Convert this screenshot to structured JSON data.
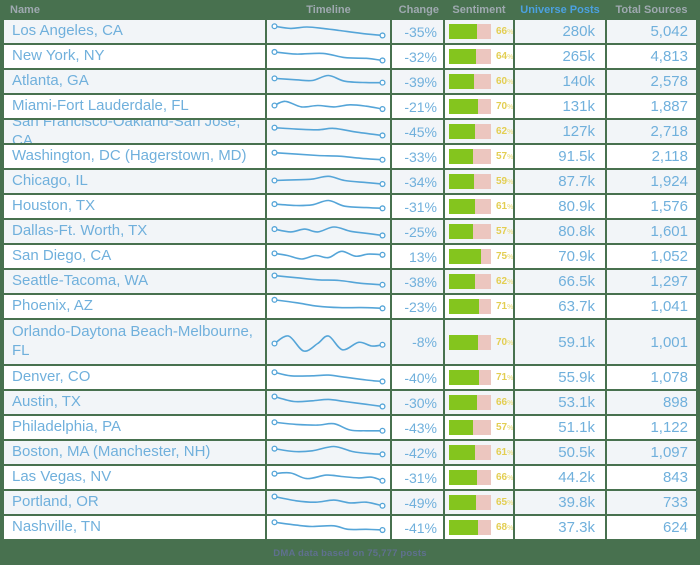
{
  "columns": [
    {
      "label": "Name"
    },
    {
      "label": "Timeline"
    },
    {
      "label": "Change"
    },
    {
      "label": "Sentiment"
    },
    {
      "label": "Universe Posts",
      "active": true
    },
    {
      "label": "Total Sources"
    }
  ],
  "colors": {
    "background_green": "#48714f",
    "row_text_blue": "#70b0dc",
    "active_column_header_blue": "#4ba1e0",
    "header_gray": "#9fa9b0",
    "sentiment_positive_green": "#84c51e",
    "sentiment_negative_pink": "#ecc6bf",
    "sentiment_label_yellow": "#e3ce52",
    "sparkline_blue": "#55a5d8",
    "stripe_row_bg": "#f2f5f8"
  },
  "chart_data": {
    "type": "table",
    "title": "",
    "columns": [
      "Name",
      "Timeline",
      "Change",
      "Sentiment",
      "Universe Posts",
      "Total Sources"
    ],
    "rows_summary": "20 DMA regions sorted descending by Universe Posts"
  },
  "rows": [
    {
      "name": "Los Angeles, CA",
      "change": "-35%",
      "sentiment_pct": 66,
      "universe_posts": "280k",
      "total_sources": "5,042",
      "spark": [
        [
          0,
          6
        ],
        [
          15,
          9
        ],
        [
          30,
          7
        ],
        [
          45,
          9
        ],
        [
          60,
          12
        ],
        [
          80,
          16
        ],
        [
          100,
          19
        ]
      ]
    },
    {
      "name": "New York, NY",
      "change": "-32%",
      "sentiment_pct": 64,
      "universe_posts": "265k",
      "total_sources": "4,813",
      "spark": [
        [
          0,
          7
        ],
        [
          20,
          10
        ],
        [
          45,
          9
        ],
        [
          65,
          15
        ],
        [
          85,
          16
        ],
        [
          100,
          19
        ]
      ]
    },
    {
      "name": "Atlanta, GA",
      "change": "-39%",
      "sentiment_pct": 60,
      "universe_posts": "140k",
      "total_sources": "2,578",
      "spark": [
        [
          0,
          9
        ],
        [
          20,
          11
        ],
        [
          35,
          12
        ],
        [
          50,
          5
        ],
        [
          65,
          13
        ],
        [
          85,
          15
        ],
        [
          100,
          15
        ]
      ]
    },
    {
      "name": "Miami-Fort Lauderdale, FL",
      "change": "-21%",
      "sentiment_pct": 70,
      "universe_posts": "131k",
      "total_sources": "1,887",
      "spark": [
        [
          0,
          12
        ],
        [
          10,
          6
        ],
        [
          25,
          14
        ],
        [
          40,
          12
        ],
        [
          55,
          14
        ],
        [
          70,
          11
        ],
        [
          85,
          13
        ],
        [
          100,
          17
        ]
      ]
    },
    {
      "name": "San Francisco-Oakland-San Jose, CA",
      "change": "-45%",
      "sentiment_pct": 62,
      "universe_posts": "127k",
      "total_sources": "2,718",
      "spark": [
        [
          0,
          8
        ],
        [
          20,
          10
        ],
        [
          40,
          11
        ],
        [
          55,
          9
        ],
        [
          75,
          14
        ],
        [
          100,
          19
        ]
      ]
    },
    {
      "name": "Washington, DC (Hagerstown, MD)",
      "change": "-33%",
      "sentiment_pct": 57,
      "universe_posts": "91.5k",
      "total_sources": "2,118",
      "spark": [
        [
          0,
          8
        ],
        [
          20,
          10
        ],
        [
          40,
          12
        ],
        [
          60,
          13
        ],
        [
          80,
          16
        ],
        [
          100,
          18
        ]
      ]
    },
    {
      "name": "Chicago, IL",
      "change": "-34%",
      "sentiment_pct": 59,
      "universe_posts": "87.7k",
      "total_sources": "1,924",
      "spark": [
        [
          0,
          12
        ],
        [
          20,
          11
        ],
        [
          35,
          10
        ],
        [
          50,
          6
        ],
        [
          65,
          12
        ],
        [
          85,
          15
        ],
        [
          100,
          17
        ]
      ]
    },
    {
      "name": "Houston, TX",
      "change": "-31%",
      "sentiment_pct": 61,
      "universe_posts": "80.9k",
      "total_sources": "1,576",
      "spark": [
        [
          0,
          10
        ],
        [
          20,
          12
        ],
        [
          35,
          11
        ],
        [
          50,
          5
        ],
        [
          65,
          13
        ],
        [
          85,
          15
        ],
        [
          100,
          16
        ]
      ]
    },
    {
      "name": "Dallas-Ft. Worth, TX",
      "change": "-25%",
      "sentiment_pct": 57,
      "universe_posts": "80.8k",
      "total_sources": "1,601",
      "spark": [
        [
          0,
          10
        ],
        [
          15,
          14
        ],
        [
          28,
          10
        ],
        [
          40,
          14
        ],
        [
          55,
          7
        ],
        [
          70,
          13
        ],
        [
          85,
          16
        ],
        [
          100,
          19
        ]
      ]
    },
    {
      "name": "San Diego, CA",
      "change": "13%",
      "sentiment_pct": 75,
      "universe_posts": "70.9k",
      "total_sources": "1,052",
      "spark": [
        [
          0,
          9
        ],
        [
          12,
          12
        ],
        [
          25,
          17
        ],
        [
          38,
          12
        ],
        [
          50,
          15
        ],
        [
          62,
          6
        ],
        [
          75,
          13
        ],
        [
          87,
          10
        ],
        [
          100,
          11
        ]
      ]
    },
    {
      "name": "Seattle-Tacoma, WA",
      "change": "-38%",
      "sentiment_pct": 62,
      "universe_posts": "66.5k",
      "total_sources": "1,297",
      "spark": [
        [
          0,
          5
        ],
        [
          20,
          8
        ],
        [
          40,
          11
        ],
        [
          60,
          12
        ],
        [
          80,
          16
        ],
        [
          100,
          18
        ]
      ]
    },
    {
      "name": "Phoenix, AZ",
      "change": "-23%",
      "sentiment_pct": 71,
      "universe_posts": "63.7k",
      "total_sources": "1,041",
      "spark": [
        [
          0,
          4
        ],
        [
          20,
          8
        ],
        [
          40,
          13
        ],
        [
          60,
          15
        ],
        [
          80,
          15
        ],
        [
          100,
          16
        ]
      ]
    },
    {
      "name": "Orlando-Daytona Beach-Melbourne, FL",
      "change": "-8%",
      "sentiment_pct": 70,
      "universe_posts": "59.1k",
      "total_sources": "1,001",
      "tall": true,
      "spark": [
        [
          0,
          14
        ],
        [
          13,
          8
        ],
        [
          27,
          20
        ],
        [
          40,
          14
        ],
        [
          50,
          8
        ],
        [
          63,
          19
        ],
        [
          78,
          13
        ],
        [
          90,
          16
        ],
        [
          100,
          15
        ]
      ]
    },
    {
      "name": "Denver, CO",
      "change": "-40%",
      "sentiment_pct": 71,
      "universe_posts": "55.9k",
      "total_sources": "1,078",
      "spark": [
        [
          0,
          6
        ],
        [
          15,
          11
        ],
        [
          35,
          11
        ],
        [
          50,
          10
        ],
        [
          65,
          13
        ],
        [
          85,
          17
        ],
        [
          100,
          19
        ]
      ]
    },
    {
      "name": "Austin, TX",
      "change": "-30%",
      "sentiment_pct": 66,
      "universe_posts": "53.1k",
      "total_sources": "898",
      "spark": [
        [
          0,
          5
        ],
        [
          18,
          12
        ],
        [
          35,
          11
        ],
        [
          50,
          9
        ],
        [
          65,
          12
        ],
        [
          85,
          16
        ],
        [
          100,
          19
        ]
      ]
    },
    {
      "name": "Philadelphia, PA",
      "change": "-43%",
      "sentiment_pct": 57,
      "universe_posts": "51.1k",
      "total_sources": "1,122",
      "spark": [
        [
          0,
          6
        ],
        [
          20,
          9
        ],
        [
          40,
          10
        ],
        [
          55,
          8
        ],
        [
          70,
          17
        ],
        [
          85,
          18
        ],
        [
          100,
          18
        ]
      ]
    },
    {
      "name": "Boston, MA (Manchester, NH)",
      "change": "-42%",
      "sentiment_pct": 61,
      "universe_posts": "50.5k",
      "total_sources": "1,097",
      "spark": [
        [
          0,
          8
        ],
        [
          18,
          12
        ],
        [
          35,
          11
        ],
        [
          55,
          5
        ],
        [
          72,
          12
        ],
        [
          88,
          15
        ],
        [
          100,
          16
        ]
      ]
    },
    {
      "name": "Las Vegas, NV",
      "change": "-31%",
      "sentiment_pct": 66,
      "universe_posts": "44.2k",
      "total_sources": "843",
      "spark": [
        [
          0,
          8
        ],
        [
          15,
          7
        ],
        [
          30,
          15
        ],
        [
          48,
          10
        ],
        [
          62,
          12
        ],
        [
          78,
          14
        ],
        [
          90,
          13
        ],
        [
          100,
          18
        ]
      ]
    },
    {
      "name": "Portland, OR",
      "change": "-49%",
      "sentiment_pct": 65,
      "universe_posts": "39.8k",
      "total_sources": "733",
      "spark": [
        [
          0,
          5
        ],
        [
          20,
          11
        ],
        [
          38,
          13
        ],
        [
          55,
          10
        ],
        [
          70,
          14
        ],
        [
          85,
          13
        ],
        [
          100,
          18
        ]
      ]
    },
    {
      "name": "Nashville, TN",
      "change": "-41%",
      "sentiment_pct": 68,
      "universe_posts": "37.3k",
      "total_sources": "624",
      "spark": [
        [
          0,
          6
        ],
        [
          20,
          10
        ],
        [
          35,
          12
        ],
        [
          55,
          11
        ],
        [
          68,
          16
        ],
        [
          85,
          16
        ],
        [
          100,
          17
        ]
      ]
    }
  ],
  "footer": {
    "note": "DMA data based on 75,777 posts"
  }
}
